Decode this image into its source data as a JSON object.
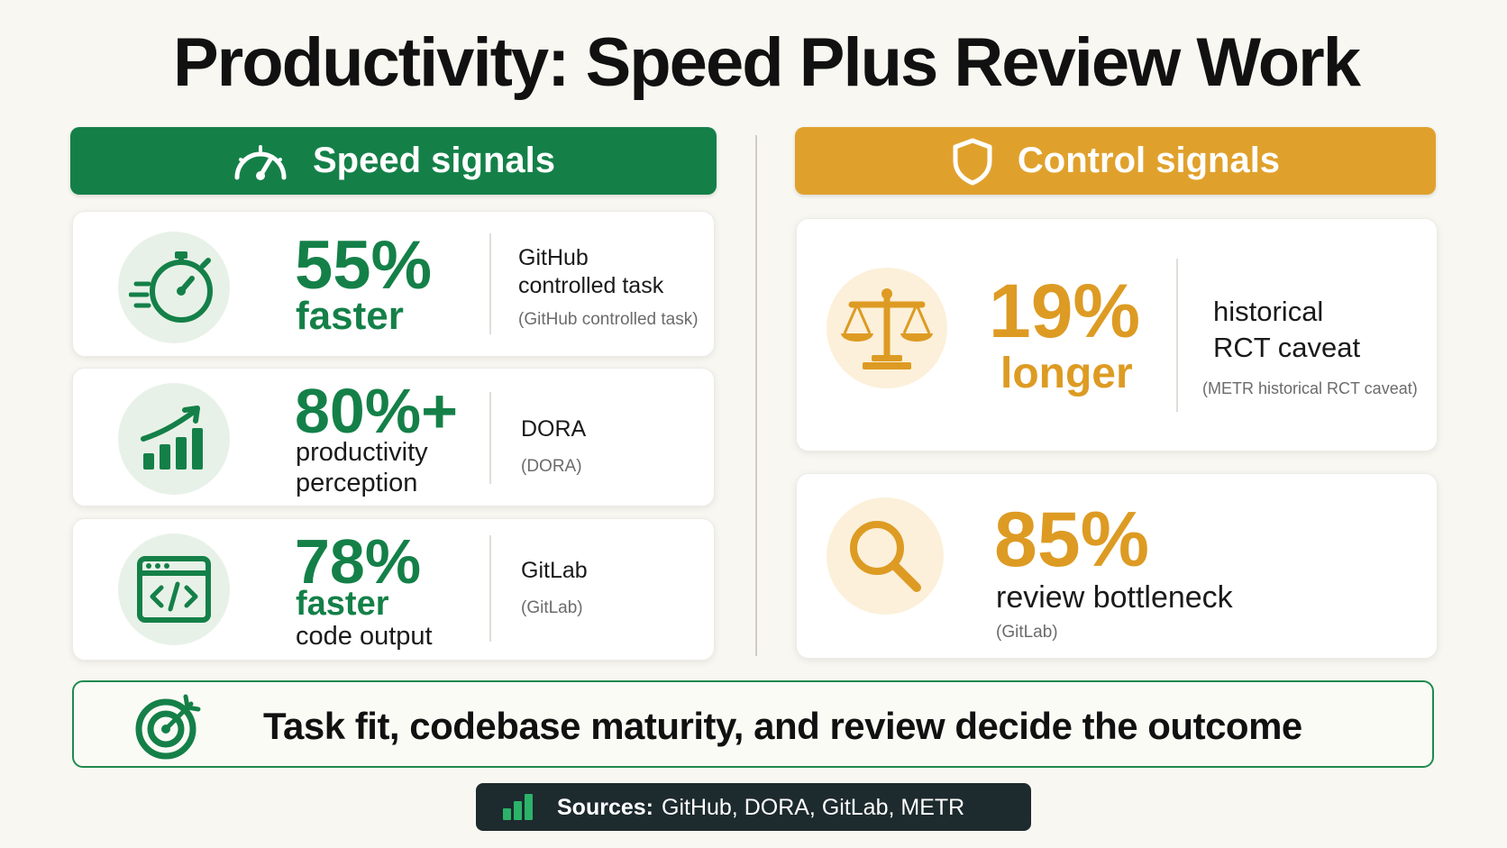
{
  "title": "Productivity: Speed Plus Review Work",
  "colors": {
    "speed_green": "#148048",
    "control_orange": "#e0a12c",
    "background": "#f8f7f1",
    "sources_bg": "#1d2a2e"
  },
  "speed": {
    "header": "Speed signals",
    "header_icon": "speedometer-icon",
    "cards": [
      {
        "icon": "stopwatch-icon",
        "value": "55%",
        "label": "faster",
        "desc": "",
        "source_main_1": "GitHub",
        "source_main_2": "controlled task",
        "source_paren": "(GitHub controlled task)"
      },
      {
        "icon": "growth-chart-icon",
        "value": "80%+",
        "label": "",
        "desc_1": "productivity",
        "desc_2": "perception",
        "source_main_1": "DORA",
        "source_paren": "(DORA)"
      },
      {
        "icon": "code-window-icon",
        "value": "78%",
        "label": "faster",
        "desc_1": "code output",
        "source_main_1": "GitLab",
        "source_paren": "(GitLab)"
      }
    ]
  },
  "control": {
    "header": "Control signals",
    "header_icon": "shield-icon",
    "cards": [
      {
        "icon": "scales-icon",
        "value": "19%",
        "label": "longer",
        "source_main_1": "historical",
        "source_main_2": "RCT caveat",
        "source_paren": "(METR historical RCT caveat)"
      },
      {
        "icon": "magnifier-icon",
        "value": "85%",
        "desc_1": "review bottleneck",
        "source_paren": "(GitLab)"
      }
    ]
  },
  "bottom": {
    "icon": "target-icon",
    "text": "Task fit, codebase maturity, and review decide the outcome"
  },
  "sources": {
    "icon": "bar-chart-icon",
    "label": "Sources:",
    "list": "GitHub, DORA, GitLab, METR"
  }
}
